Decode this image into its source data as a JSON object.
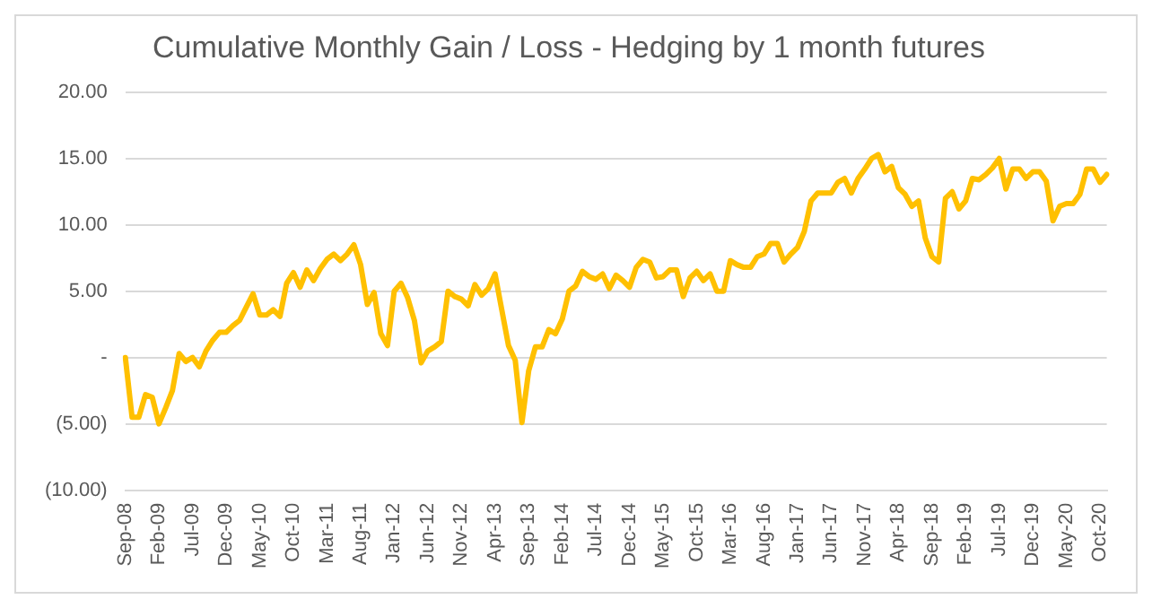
{
  "chart_data": {
    "type": "line",
    "title": "Cumulative Monthly Gain / Loss - Hedging by 1 month futures",
    "categories": [
      "Sep-08",
      null,
      null,
      null,
      null,
      "Feb-09",
      null,
      null,
      null,
      null,
      "Jul-09",
      null,
      null,
      null,
      null,
      "Dec-09",
      null,
      null,
      null,
      null,
      "May-10",
      null,
      null,
      null,
      null,
      "Oct-10",
      null,
      null,
      null,
      null,
      "Mar-11",
      null,
      null,
      null,
      null,
      "Aug-11",
      null,
      null,
      null,
      null,
      "Jan-12",
      null,
      null,
      null,
      null,
      "Jun-12",
      null,
      null,
      null,
      null,
      "Nov-12",
      null,
      null,
      null,
      null,
      "Apr-13",
      null,
      null,
      null,
      null,
      "Sep-13",
      null,
      null,
      null,
      null,
      "Feb-14",
      null,
      null,
      null,
      null,
      "Jul-14",
      null,
      null,
      null,
      null,
      "Dec-14",
      null,
      null,
      null,
      null,
      "May-15",
      null,
      null,
      null,
      null,
      "Oct-15",
      null,
      null,
      null,
      null,
      "Mar-16",
      null,
      null,
      null,
      null,
      "Aug-16",
      null,
      null,
      null,
      null,
      "Jan-17",
      null,
      null,
      null,
      null,
      "Jun-17",
      null,
      null,
      null,
      null,
      "Nov-17",
      null,
      null,
      null,
      null,
      "Apr-18",
      null,
      null,
      null,
      null,
      "Sep-18",
      null,
      null,
      null,
      null,
      "Feb-19",
      null,
      null,
      null,
      null,
      "Jul-19",
      null,
      null,
      null,
      null,
      "Dec-19",
      null,
      null,
      null,
      null,
      "May-20",
      null,
      null,
      null,
      null,
      "Oct-20",
      null
    ],
    "series": [
      {
        "color": "#ffc000",
        "values": [
          0,
          -4.5,
          -4.5,
          -2.8,
          -3.0,
          -5.0,
          -3.8,
          -2.5,
          0.3,
          -0.3,
          0,
          -0.7,
          0.5,
          1.3,
          1.9,
          1.9,
          2.4,
          2.8,
          3.8,
          4.8,
          3.2,
          3.2,
          3.6,
          3.1,
          5.6,
          6.4,
          5.3,
          6.6,
          5.8,
          6.7,
          7.4,
          7.8,
          7.3,
          7.8,
          8.5,
          7.0,
          4.0,
          4.9,
          1.8,
          0.9,
          5.0,
          5.6,
          4.5,
          2.8,
          -0.4,
          0.5,
          0.8,
          1.2,
          5.0,
          4.6,
          4.4,
          3.9,
          5.5,
          4.7,
          5.2,
          6.3,
          3.6,
          0.9,
          -0.2,
          -4.9,
          -1.0,
          0.8,
          0.8,
          2.1,
          1.8,
          2.9,
          5.0,
          5.4,
          6.5,
          6.1,
          5.9,
          6.3,
          5.2,
          6.2,
          5.8,
          5.3,
          6.8,
          7.4,
          7.2,
          6.0,
          6.1,
          6.6,
          6.6,
          4.6,
          6.0,
          6.5,
          5.8,
          6.3,
          5.0,
          5.0,
          7.3,
          7.0,
          6.8,
          6.8,
          7.6,
          7.8,
          8.6,
          8.6,
          7.2,
          7.8,
          8.3,
          9.5,
          11.8,
          12.4,
          12.4,
          12.4,
          13.2,
          13.5,
          12.4,
          13.5,
          14.2,
          15.0,
          15.3,
          14.0,
          14.4,
          12.8,
          12.3,
          11.4,
          11.8,
          9.0,
          7.6,
          7.2,
          12.0,
          12.5,
          11.2,
          11.8,
          13.5,
          13.4,
          13.8,
          14.3,
          15.0,
          12.7,
          14.2,
          14.2,
          13.5,
          14.0,
          14.0,
          13.3,
          10.3,
          11.4,
          11.6,
          11.6,
          12.3,
          14.2,
          14.2,
          13.2,
          13.8
        ]
      }
    ],
    "ylim": [
      -10,
      20
    ],
    "yticks": [
      {
        "value": -10,
        "label": "(10.00)"
      },
      {
        "value": -5,
        "label": "(5.00)"
      },
      {
        "value": 0,
        "label": "-"
      },
      {
        "value": 5,
        "label": "5.00"
      },
      {
        "value": 10,
        "label": "10.00"
      },
      {
        "value": 15,
        "label": "15.00"
      },
      {
        "value": 20,
        "label": "20.00"
      }
    ],
    "grid": "y",
    "legend": false,
    "marker": "none",
    "line_style": "solid"
  }
}
